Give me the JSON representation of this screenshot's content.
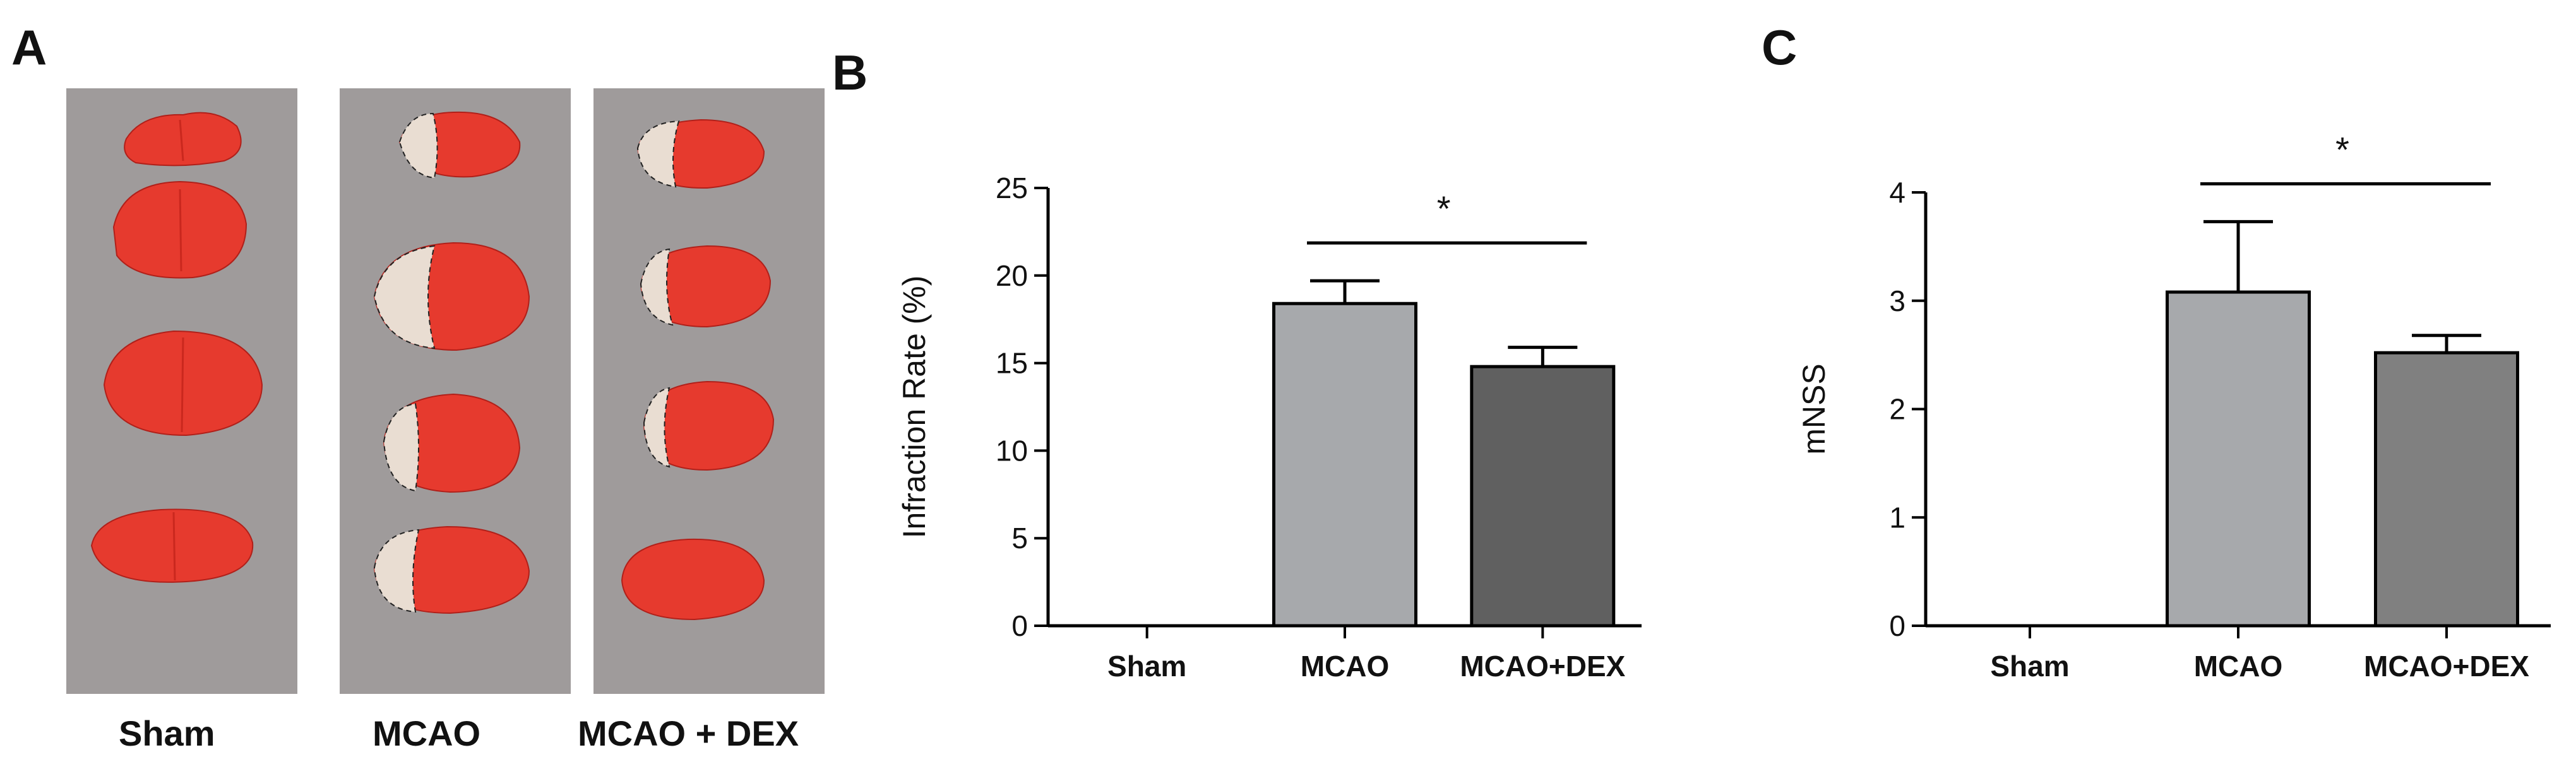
{
  "panels": {
    "A": {
      "letter": "A",
      "groups": [
        {
          "label": "Sham"
        },
        {
          "label": "MCAO"
        },
        {
          "label": "MCAO + DEX"
        }
      ],
      "tissue_color": "#e63a2e",
      "infarct_color": "#e9ddd2",
      "background_color": "#9f9b9b"
    },
    "B": {
      "letter": "B"
    },
    "C": {
      "letter": "C"
    }
  },
  "chart_data": [
    {
      "type": "bar",
      "panel": "B",
      "categories": [
        "Sham",
        "MCAO",
        "MCAO+DEX"
      ],
      "values": [
        0,
        18.4,
        14.8
      ],
      "error": [
        0,
        1.3,
        1.1
      ],
      "colors": [
        "#a7a9ac",
        "#a7a9ac",
        "#606060"
      ],
      "ylabel": "Infraction Rate (%)",
      "ylim": [
        0,
        25
      ],
      "yticks": [
        0,
        5,
        10,
        15,
        20,
        25
      ],
      "significance": {
        "from": "MCAO",
        "to": "MCAO+DEX",
        "label": "*"
      },
      "grid": false
    },
    {
      "type": "bar",
      "panel": "C",
      "categories": [
        "Sham",
        "MCAO",
        "MCAO+DEX"
      ],
      "values": [
        0,
        3.08,
        2.52
      ],
      "error": [
        0,
        0.65,
        0.16
      ],
      "colors": [
        "#a7a9ac",
        "#a7a9ac",
        "#808080"
      ],
      "ylabel": "mNSS",
      "ylim": [
        0,
        4
      ],
      "yticks": [
        0,
        1,
        2,
        3,
        4
      ],
      "significance": {
        "from": "MCAO",
        "to": "MCAO+DEX",
        "label": "*"
      },
      "grid": false
    }
  ]
}
